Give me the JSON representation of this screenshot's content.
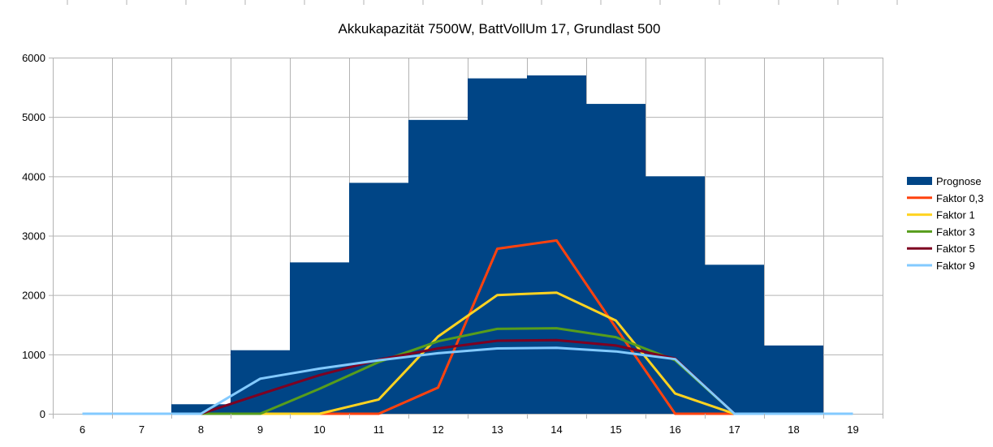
{
  "chart_data": {
    "type": "bar",
    "title": "Akkukapazität 7500W, BattVollUm 17, Grundlast 500",
    "xlabel": "",
    "ylabel": "",
    "ylim": [
      0,
      6000
    ],
    "yticks": [
      0,
      1000,
      2000,
      3000,
      4000,
      5000,
      6000
    ],
    "categories": [
      "6",
      "7",
      "8",
      "9",
      "10",
      "11",
      "12",
      "13",
      "14",
      "15",
      "16",
      "17",
      "18",
      "19"
    ],
    "grid": true,
    "legend_position": "right",
    "series": [
      {
        "name": "Prognose",
        "kind": "bar",
        "color": "#004586",
        "values": [
          0,
          0,
          160,
          1070,
          2550,
          3890,
          4950,
          5650,
          5700,
          5220,
          4000,
          2510,
          1150,
          0
        ]
      },
      {
        "name": "Faktor 0,3",
        "kind": "line",
        "color": "#ff420e",
        "values": [
          0,
          0,
          0,
          0,
          0,
          0,
          440,
          2780,
          2920,
          1450,
          0,
          0,
          0,
          0
        ]
      },
      {
        "name": "Faktor 1",
        "kind": "line",
        "color": "#ffd320",
        "values": [
          0,
          0,
          0,
          0,
          0,
          240,
          1300,
          2000,
          2040,
          1570,
          340,
          0,
          0,
          0
        ]
      },
      {
        "name": "Faktor 3",
        "kind": "line",
        "color": "#579d1c",
        "values": [
          0,
          0,
          0,
          0,
          420,
          870,
          1220,
          1430,
          1440,
          1290,
          900,
          0,
          0,
          0
        ]
      },
      {
        "name": "Faktor 5",
        "kind": "line",
        "color": "#7e0021",
        "values": [
          0,
          0,
          0,
          330,
          650,
          910,
          1100,
          1230,
          1240,
          1150,
          930,
          0,
          0,
          0
        ]
      },
      {
        "name": "Faktor 9",
        "kind": "line",
        "color": "#83caff",
        "values": [
          0,
          0,
          0,
          590,
          760,
          900,
          1020,
          1100,
          1110,
          1050,
          920,
          0,
          0,
          0
        ]
      }
    ]
  }
}
